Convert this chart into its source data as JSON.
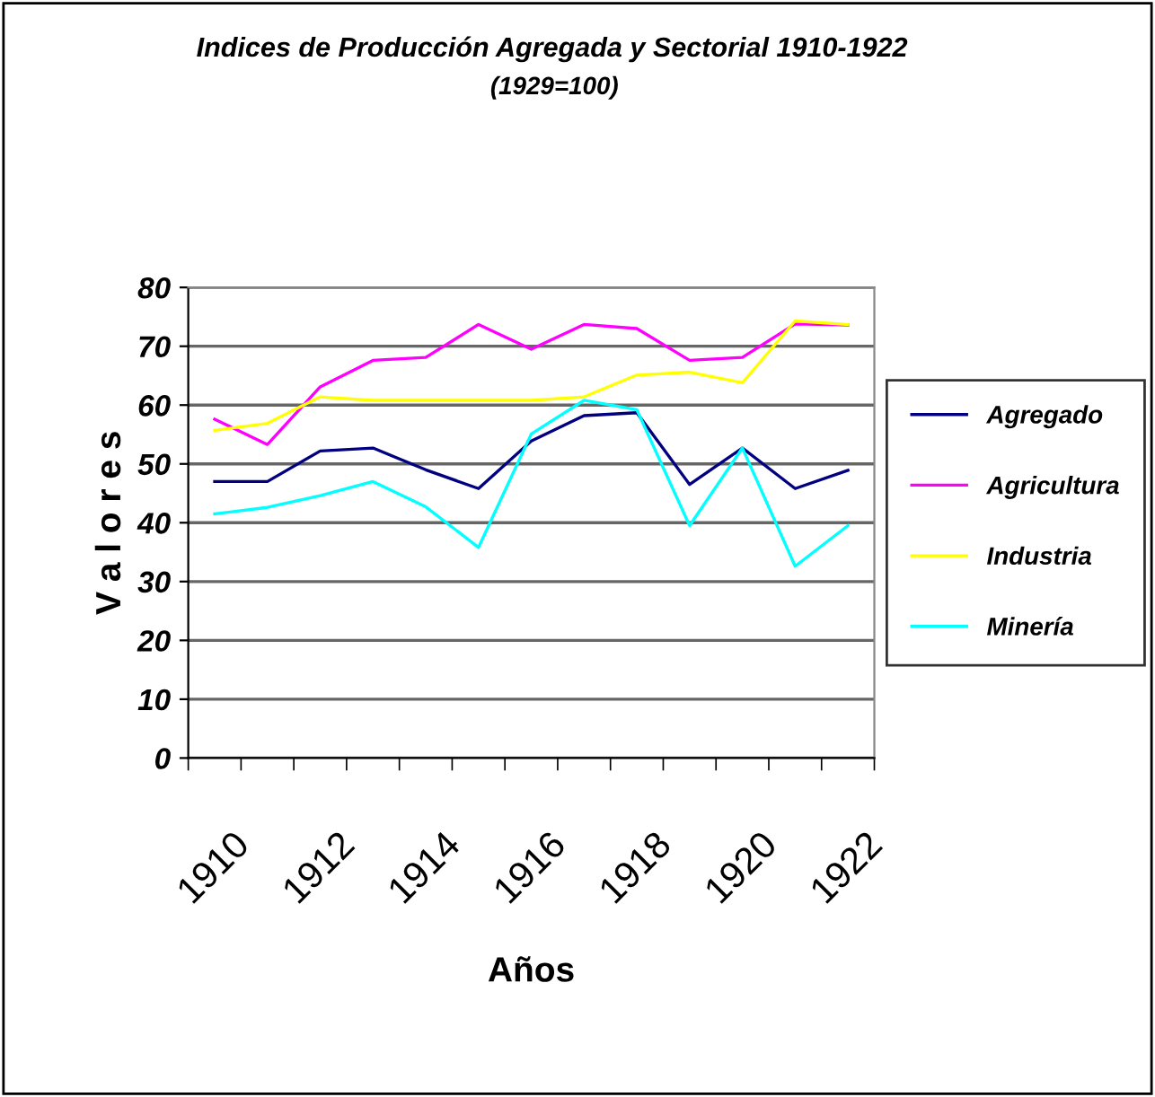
{
  "chart_data": {
    "type": "line",
    "title": "Indices de Producción Agregada y Sectorial 1910-1922",
    "subtitle": "(1929=100)",
    "xlabel": "Años",
    "ylabel": "V a l o r e s",
    "categories": [
      "1910",
      null,
      "1912",
      null,
      "1914",
      null,
      "1916",
      null,
      "1918",
      null,
      "1920",
      null,
      "1922"
    ],
    "series": [
      {
        "name": "Agregado",
        "color": "#000080",
        "values": [
          47,
          47,
          52.2,
          52.7,
          49,
          45.8,
          53.9,
          58.2,
          58.7,
          46.5,
          52.7,
          45.8,
          48.9
        ]
      },
      {
        "name": "Agricultura",
        "color": "#ff00ff",
        "values": [
          57.6,
          53.3,
          63.1,
          67.6,
          68.1,
          73.7,
          69.5,
          73.7,
          73.0,
          67.6,
          68.1,
          73.8,
          73.6
        ]
      },
      {
        "name": "Industria",
        "color": "#ffff00",
        "values": [
          55.7,
          56.9,
          61.4,
          60.8,
          60.8,
          60.8,
          60.8,
          61.4,
          65.1,
          65.6,
          63.8,
          74.3,
          73.7
        ]
      },
      {
        "name": "Minería",
        "color": "#00ffff",
        "values": [
          41.5,
          42.6,
          44.6,
          47,
          42.7,
          35.8,
          55.1,
          60.8,
          59.2,
          39.5,
          52.7,
          32.6,
          39.5
        ]
      }
    ],
    "ylim": [
      0,
      80
    ],
    "yticks": [
      0,
      10,
      20,
      30,
      40,
      50,
      60,
      70,
      80
    ],
    "grid": "y",
    "legend": "right",
    "marker": "none",
    "line_style": "solid"
  }
}
